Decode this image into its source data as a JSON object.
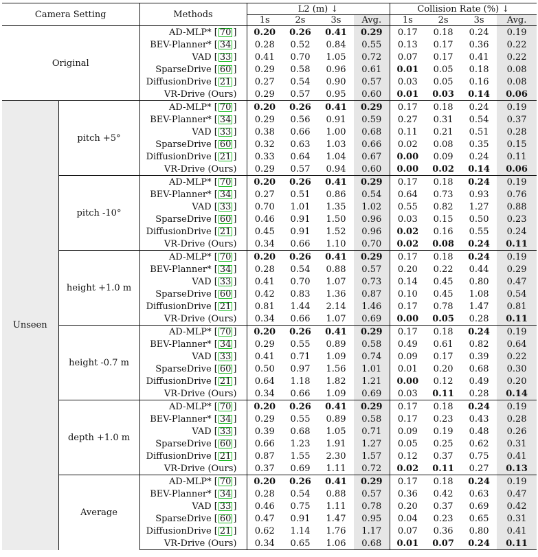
{
  "header": {
    "camera_setting": "Camera Setting",
    "methods": "Methods",
    "l2_group": "L2 (m) ↓",
    "collision_group": "Collision Rate (%) ↓",
    "l2_subcols": [
      "1s",
      "2s",
      "3s",
      "Avg."
    ],
    "collision_subcols": [
      "1s",
      "2s",
      "3s",
      "Avg."
    ]
  },
  "methods": [
    {
      "name": "AD-MLP*",
      "ref": "70"
    },
    {
      "name": "BEV-Planner*",
      "ref": "34"
    },
    {
      "name": "VAD",
      "ref": "33"
    },
    {
      "name": "SparseDrive",
      "ref": "60"
    },
    {
      "name": "DiffusionDrive",
      "ref": "21"
    },
    {
      "name": "VR-Drive (Ours)",
      "ref": ""
    }
  ],
  "top_groups": [
    {
      "label": "Original"
    },
    {
      "label": "Unseen"
    }
  ],
  "groups": [
    {
      "top": "Original",
      "sub": "",
      "rows": [
        {
          "l2": [
            "0.20",
            "0.26",
            "0.41",
            "0.29"
          ],
          "l2_bold": [
            1,
            1,
            1,
            1
          ],
          "col": [
            "0.17",
            "0.18",
            "0.24",
            "0.19"
          ],
          "col_bold": [
            0,
            0,
            0,
            0
          ]
        },
        {
          "l2": [
            "0.28",
            "0.52",
            "0.84",
            "0.55"
          ],
          "l2_bold": [
            0,
            0,
            0,
            0
          ],
          "col": [
            "0.13",
            "0.17",
            "0.36",
            "0.22"
          ],
          "col_bold": [
            0,
            0,
            0,
            0
          ]
        },
        {
          "l2": [
            "0.41",
            "0.70",
            "1.05",
            "0.72"
          ],
          "l2_bold": [
            0,
            0,
            0,
            0
          ],
          "col": [
            "0.07",
            "0.17",
            "0.41",
            "0.22"
          ],
          "col_bold": [
            0,
            0,
            0,
            0
          ]
        },
        {
          "l2": [
            "0.29",
            "0.58",
            "0.96",
            "0.61"
          ],
          "l2_bold": [
            0,
            0,
            0,
            0
          ],
          "col": [
            "0.01",
            "0.05",
            "0.18",
            "0.08"
          ],
          "col_bold": [
            1,
            0,
            0,
            0
          ]
        },
        {
          "l2": [
            "0.27",
            "0.54",
            "0.90",
            "0.57"
          ],
          "l2_bold": [
            0,
            0,
            0,
            0
          ],
          "col": [
            "0.03",
            "0.05",
            "0.16",
            "0.08"
          ],
          "col_bold": [
            0,
            0,
            0,
            0
          ]
        },
        {
          "l2": [
            "0.29",
            "0.57",
            "0.95",
            "0.60"
          ],
          "l2_bold": [
            0,
            0,
            0,
            0
          ],
          "col": [
            "0.01",
            "0.03",
            "0.14",
            "0.06"
          ],
          "col_bold": [
            1,
            1,
            1,
            1
          ]
        }
      ]
    },
    {
      "top": "Unseen",
      "sub": "pitch +5°",
      "rows": [
        {
          "l2": [
            "0.20",
            "0.26",
            "0.41",
            "0.29"
          ],
          "l2_bold": [
            1,
            1,
            1,
            1
          ],
          "col": [
            "0.17",
            "0.18",
            "0.24",
            "0.19"
          ],
          "col_bold": [
            0,
            0,
            0,
            0
          ]
        },
        {
          "l2": [
            "0.29",
            "0.56",
            "0.91",
            "0.59"
          ],
          "l2_bold": [
            0,
            0,
            0,
            0
          ],
          "col": [
            "0.27",
            "0.31",
            "0.54",
            "0.37"
          ],
          "col_bold": [
            0,
            0,
            0,
            0
          ]
        },
        {
          "l2": [
            "0.38",
            "0.66",
            "1.00",
            "0.68"
          ],
          "l2_bold": [
            0,
            0,
            0,
            0
          ],
          "col": [
            "0.11",
            "0.21",
            "0.51",
            "0.28"
          ],
          "col_bold": [
            0,
            0,
            0,
            0
          ]
        },
        {
          "l2": [
            "0.32",
            "0.63",
            "1.03",
            "0.66"
          ],
          "l2_bold": [
            0,
            0,
            0,
            0
          ],
          "col": [
            "0.02",
            "0.08",
            "0.35",
            "0.15"
          ],
          "col_bold": [
            0,
            0,
            0,
            0
          ]
        },
        {
          "l2": [
            "0.33",
            "0.64",
            "1.04",
            "0.67"
          ],
          "l2_bold": [
            0,
            0,
            0,
            0
          ],
          "col": [
            "0.00",
            "0.09",
            "0.24",
            "0.11"
          ],
          "col_bold": [
            1,
            0,
            0,
            0
          ]
        },
        {
          "l2": [
            "0.29",
            "0.57",
            "0.94",
            "0.60"
          ],
          "l2_bold": [
            0,
            0,
            0,
            0
          ],
          "col": [
            "0.00",
            "0.02",
            "0.14",
            "0.06"
          ],
          "col_bold": [
            1,
            1,
            1,
            1
          ]
        }
      ]
    },
    {
      "top": "Unseen",
      "sub": "pitch -10°",
      "rows": [
        {
          "l2": [
            "0.20",
            "0.26",
            "0.41",
            "0.29"
          ],
          "l2_bold": [
            1,
            1,
            1,
            1
          ],
          "col": [
            "0.17",
            "0.18",
            "0.24",
            "0.19"
          ],
          "col_bold": [
            0,
            0,
            1,
            0
          ]
        },
        {
          "l2": [
            "0.27",
            "0.51",
            "0.86",
            "0.54"
          ],
          "l2_bold": [
            0,
            0,
            0,
            0
          ],
          "col": [
            "0.64",
            "0.73",
            "0.93",
            "0.76"
          ],
          "col_bold": [
            0,
            0,
            0,
            0
          ]
        },
        {
          "l2": [
            "0.70",
            "1.01",
            "1.35",
            "1.02"
          ],
          "l2_bold": [
            0,
            0,
            0,
            0
          ],
          "col": [
            "0.55",
            "0.82",
            "1.27",
            "0.88"
          ],
          "col_bold": [
            0,
            0,
            0,
            0
          ]
        },
        {
          "l2": [
            "0.46",
            "0.91",
            "1.50",
            "0.96"
          ],
          "l2_bold": [
            0,
            0,
            0,
            0
          ],
          "col": [
            "0.03",
            "0.15",
            "0.50",
            "0.23"
          ],
          "col_bold": [
            0,
            0,
            0,
            0
          ]
        },
        {
          "l2": [
            "0.45",
            "0.91",
            "1.52",
            "0.96"
          ],
          "l2_bold": [
            0,
            0,
            0,
            0
          ],
          "col": [
            "0.02",
            "0.16",
            "0.55",
            "0.24"
          ],
          "col_bold": [
            1,
            0,
            0,
            0
          ]
        },
        {
          "l2": [
            "0.34",
            "0.66",
            "1.10",
            "0.70"
          ],
          "l2_bold": [
            0,
            0,
            0,
            0
          ],
          "col": [
            "0.02",
            "0.08",
            "0.24",
            "0.11"
          ],
          "col_bold": [
            1,
            1,
            1,
            1
          ]
        }
      ]
    },
    {
      "top": "Unseen",
      "sub": "height +1.0 m",
      "rows": [
        {
          "l2": [
            "0.20",
            "0.26",
            "0.41",
            "0.29"
          ],
          "l2_bold": [
            1,
            1,
            1,
            1
          ],
          "col": [
            "0.17",
            "0.18",
            "0.24",
            "0.19"
          ],
          "col_bold": [
            0,
            0,
            1,
            0
          ]
        },
        {
          "l2": [
            "0.28",
            "0.54",
            "0.88",
            "0.57"
          ],
          "l2_bold": [
            0,
            0,
            0,
            0
          ],
          "col": [
            "0.20",
            "0.22",
            "0.44",
            "0.29"
          ],
          "col_bold": [
            0,
            0,
            0,
            0
          ]
        },
        {
          "l2": [
            "0.41",
            "0.70",
            "1.07",
            "0.73"
          ],
          "l2_bold": [
            0,
            0,
            0,
            0
          ],
          "col": [
            "0.14",
            "0.45",
            "0.80",
            "0.47"
          ],
          "col_bold": [
            0,
            0,
            0,
            0
          ]
        },
        {
          "l2": [
            "0.42",
            "0.83",
            "1.36",
            "0.87"
          ],
          "l2_bold": [
            0,
            0,
            0,
            0
          ],
          "col": [
            "0.10",
            "0.45",
            "1.08",
            "0.54"
          ],
          "col_bold": [
            0,
            0,
            0,
            0
          ]
        },
        {
          "l2": [
            "0.81",
            "1.44",
            "2.14",
            "1.46"
          ],
          "l2_bold": [
            0,
            0,
            0,
            0
          ],
          "col": [
            "0.17",
            "0.78",
            "1.47",
            "0.81"
          ],
          "col_bold": [
            0,
            0,
            0,
            0
          ]
        },
        {
          "l2": [
            "0.34",
            "0.66",
            "1.07",
            "0.69"
          ],
          "l2_bold": [
            0,
            0,
            0,
            0
          ],
          "col": [
            "0.00",
            "0.05",
            "0.28",
            "0.11"
          ],
          "col_bold": [
            1,
            1,
            0,
            1
          ]
        }
      ]
    },
    {
      "top": "Unseen",
      "sub": "height -0.7 m",
      "rows": [
        {
          "l2": [
            "0.20",
            "0.26",
            "0.41",
            "0.29"
          ],
          "l2_bold": [
            1,
            1,
            1,
            1
          ],
          "col": [
            "0.17",
            "0.18",
            "0.24",
            "0.19"
          ],
          "col_bold": [
            0,
            0,
            1,
            0
          ]
        },
        {
          "l2": [
            "0.29",
            "0.55",
            "0.89",
            "0.58"
          ],
          "l2_bold": [
            0,
            0,
            0,
            0
          ],
          "col": [
            "0.49",
            "0.61",
            "0.82",
            "0.64"
          ],
          "col_bold": [
            0,
            0,
            0,
            0
          ]
        },
        {
          "l2": [
            "0.41",
            "0.71",
            "1.09",
            "0.74"
          ],
          "l2_bold": [
            0,
            0,
            0,
            0
          ],
          "col": [
            "0.09",
            "0.17",
            "0.39",
            "0.22"
          ],
          "col_bold": [
            0,
            0,
            0,
            0
          ]
        },
        {
          "l2": [
            "0.50",
            "0.97",
            "1.56",
            "1.01"
          ],
          "l2_bold": [
            0,
            0,
            0,
            0
          ],
          "col": [
            "0.01",
            "0.20",
            "0.68",
            "0.30"
          ],
          "col_bold": [
            0,
            0,
            0,
            0
          ]
        },
        {
          "l2": [
            "0.64",
            "1.18",
            "1.82",
            "1.21"
          ],
          "l2_bold": [
            0,
            0,
            0,
            0
          ],
          "col": [
            "0.00",
            "0.12",
            "0.49",
            "0.20"
          ],
          "col_bold": [
            1,
            0,
            0,
            0
          ]
        },
        {
          "l2": [
            "0.34",
            "0.66",
            "1.09",
            "0.69"
          ],
          "l2_bold": [
            0,
            0,
            0,
            0
          ],
          "col": [
            "0.03",
            "0.11",
            "0.28",
            "0.14"
          ],
          "col_bold": [
            0,
            1,
            0,
            1
          ]
        }
      ]
    },
    {
      "top": "Unseen",
      "sub": "depth +1.0 m",
      "rows": [
        {
          "l2": [
            "0.20",
            "0.26",
            "0.41",
            "0.29"
          ],
          "l2_bold": [
            1,
            1,
            1,
            1
          ],
          "col": [
            "0.17",
            "0.18",
            "0.24",
            "0.19"
          ],
          "col_bold": [
            0,
            0,
            1,
            0
          ]
        },
        {
          "l2": [
            "0.29",
            "0.55",
            "0.89",
            "0.58"
          ],
          "l2_bold": [
            0,
            0,
            0,
            0
          ],
          "col": [
            "0.17",
            "0.23",
            "0.43",
            "0.28"
          ],
          "col_bold": [
            0,
            0,
            0,
            0
          ]
        },
        {
          "l2": [
            "0.39",
            "0.68",
            "1.05",
            "0.71"
          ],
          "l2_bold": [
            0,
            0,
            0,
            0
          ],
          "col": [
            "0.09",
            "0.19",
            "0.48",
            "0.26"
          ],
          "col_bold": [
            0,
            0,
            0,
            0
          ]
        },
        {
          "l2": [
            "0.66",
            "1.23",
            "1.91",
            "1.27"
          ],
          "l2_bold": [
            0,
            0,
            0,
            0
          ],
          "col": [
            "0.05",
            "0.25",
            "0.62",
            "0.31"
          ],
          "col_bold": [
            0,
            0,
            0,
            0
          ]
        },
        {
          "l2": [
            "0.87",
            "1.55",
            "2.30",
            "1.57"
          ],
          "l2_bold": [
            0,
            0,
            0,
            0
          ],
          "col": [
            "0.12",
            "0.37",
            "0.75",
            "0.41"
          ],
          "col_bold": [
            0,
            0,
            0,
            0
          ]
        },
        {
          "l2": [
            "0.37",
            "0.69",
            "1.11",
            "0.72"
          ],
          "l2_bold": [
            0,
            0,
            0,
            0
          ],
          "col": [
            "0.02",
            "0.11",
            "0.27",
            "0.13"
          ],
          "col_bold": [
            1,
            1,
            0,
            1
          ]
        }
      ]
    },
    {
      "top": "Unseen",
      "sub": "Average",
      "rows": [
        {
          "l2": [
            "0.20",
            "0.26",
            "0.41",
            "0.29"
          ],
          "l2_bold": [
            1,
            1,
            1,
            1
          ],
          "col": [
            "0.17",
            "0.18",
            "0.24",
            "0.19"
          ],
          "col_bold": [
            0,
            0,
            1,
            0
          ]
        },
        {
          "l2": [
            "0.28",
            "0.54",
            "0.88",
            "0.57"
          ],
          "l2_bold": [
            0,
            0,
            0,
            0
          ],
          "col": [
            "0.36",
            "0.42",
            "0.63",
            "0.47"
          ],
          "col_bold": [
            0,
            0,
            0,
            0
          ]
        },
        {
          "l2": [
            "0.46",
            "0.75",
            "1.11",
            "0.78"
          ],
          "l2_bold": [
            0,
            0,
            0,
            0
          ],
          "col": [
            "0.20",
            "0.37",
            "0.69",
            "0.42"
          ],
          "col_bold": [
            0,
            0,
            0,
            0
          ]
        },
        {
          "l2": [
            "0.47",
            "0.91",
            "1.47",
            "0.95"
          ],
          "l2_bold": [
            0,
            0,
            0,
            0
          ],
          "col": [
            "0.04",
            "0.23",
            "0.65",
            "0.31"
          ],
          "col_bold": [
            0,
            0,
            0,
            0
          ]
        },
        {
          "l2": [
            "0.62",
            "1.14",
            "1.76",
            "1.17"
          ],
          "l2_bold": [
            0,
            0,
            0,
            0
          ],
          "col": [
            "0.07",
            "0.36",
            "0.80",
            "0.41"
          ],
          "col_bold": [
            0,
            0,
            0,
            0
          ]
        },
        {
          "l2": [
            "0.34",
            "0.65",
            "1.06",
            "0.68"
          ],
          "l2_bold": [
            0,
            0,
            0,
            0
          ],
          "col": [
            "0.01",
            "0.07",
            "0.24",
            "0.11"
          ],
          "col_bold": [
            1,
            1,
            1,
            1
          ]
        }
      ]
    }
  ],
  "colors": {
    "cite_border": "#22c02a",
    "avg_shade": "#e6e6e6",
    "unseen_shade": "#ececec"
  }
}
